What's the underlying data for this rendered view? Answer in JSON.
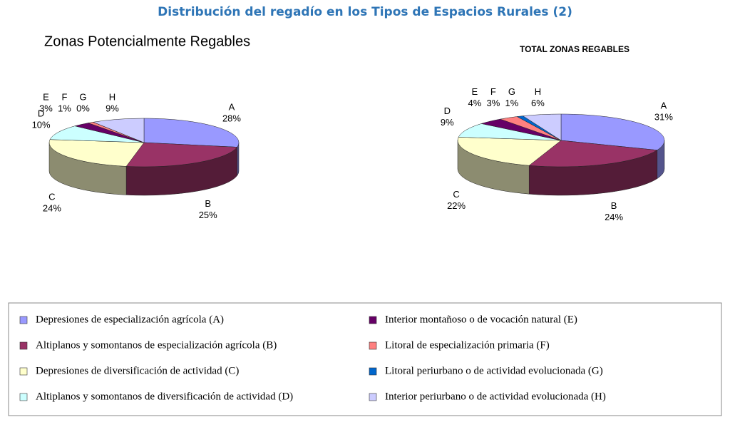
{
  "title": "Distribución del regadío en los Tipos de Espacios Rurales (2)",
  "chart_data": [
    {
      "type": "pie",
      "title": "Zonas Potencialmente Regables",
      "categories": [
        "A",
        "B",
        "C",
        "D",
        "E",
        "F",
        "G",
        "H"
      ],
      "values": [
        28,
        25,
        24,
        10,
        3,
        1,
        0,
        9
      ],
      "value_labels": [
        "28%",
        "25%",
        "24%",
        "10%",
        "3%",
        "1%",
        "0%",
        "9%"
      ],
      "colors": [
        "#9999ff",
        "#993366",
        "#ffffcc",
        "#ccffff",
        "#660066",
        "#ff8080",
        "#0066cc",
        "#ccccff"
      ]
    },
    {
      "type": "pie",
      "title": "TOTAL ZONAS REGABLES",
      "categories": [
        "A",
        "B",
        "C",
        "D",
        "E",
        "F",
        "G",
        "H"
      ],
      "values": [
        31,
        24,
        22,
        9,
        4,
        3,
        1,
        6
      ],
      "value_labels": [
        "31%",
        "24%",
        "22%",
        "9%",
        "4%",
        "3%",
        "1%",
        "6%"
      ],
      "colors": [
        "#9999ff",
        "#993366",
        "#ffffcc",
        "#ccffff",
        "#660066",
        "#ff8080",
        "#0066cc",
        "#ccccff"
      ]
    }
  ],
  "legend": [
    "Depresiones de especialización agrícola (A)",
    "Altiplanos y somontanos de especialización agrícola (B)",
    "Depresiones de diversificación de actividad (C)",
    "Altiplanos y somontanos de diversificación de actividad (D)",
    "Interior montañoso o de vocación natural (E)",
    "Litoral de especialización primaria (F)",
    "Litoral periurbano o de actividad evolucionada (G)",
    "Interior periurbano o de actividad evolucionada (H)"
  ]
}
